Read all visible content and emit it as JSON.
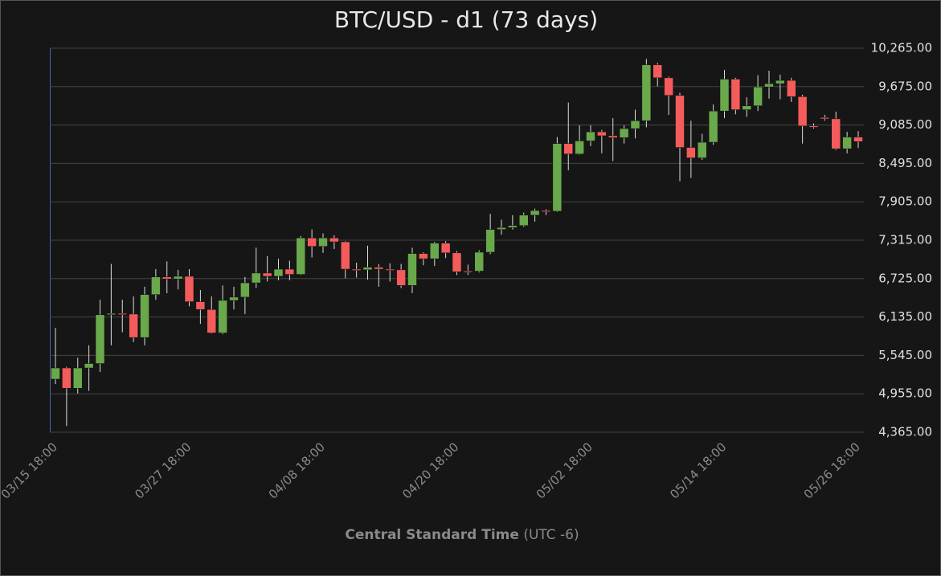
{
  "chart_data": {
    "type": "candlestick",
    "title": "BTC/USD - d1 (73 days)",
    "x_label": "Central Standard Time",
    "x_label_note": "(UTC -6)",
    "up_color": "#69a84b",
    "down_color": "#f45b5b",
    "grid": true,
    "categories": [
      "03/15 18:00",
      null,
      null,
      null,
      null,
      null,
      null,
      null,
      null,
      null,
      null,
      null,
      "03/27 18:00",
      null,
      null,
      null,
      null,
      null,
      null,
      null,
      null,
      null,
      null,
      null,
      "04/08 18:00",
      null,
      null,
      null,
      null,
      null,
      null,
      null,
      null,
      null,
      null,
      null,
      "04/20 18:00",
      null,
      null,
      null,
      null,
      null,
      null,
      null,
      null,
      null,
      null,
      null,
      "05/02 18:00",
      null,
      null,
      null,
      null,
      null,
      null,
      null,
      null,
      null,
      null,
      null,
      "05/14 18:00",
      null,
      null,
      null,
      null,
      null,
      null,
      null,
      null,
      null,
      null,
      null,
      "05/26 18:00"
    ],
    "open": [
      5180,
      5352,
      5040,
      5352,
      5420,
      6170,
      6190,
      6180,
      5820,
      6480,
      6750,
      6720,
      6760,
      6370,
      6250,
      5890,
      6390,
      6440,
      6660,
      6810,
      6760,
      6870,
      6790,
      7350,
      7220,
      7350,
      7290,
      6870,
      6860,
      6900,
      6870,
      6860,
      6620,
      7110,
      7030,
      7270,
      7120,
      6840,
      6840,
      7130,
      7480,
      7510,
      7540,
      7700,
      7770,
      7760,
      8800,
      8640,
      8840,
      8980,
      8920,
      8890,
      9030,
      9150,
      10010,
      9810,
      9540,
      8740,
      8580,
      8820,
      9300,
      9790,
      9320,
      9380,
      9670,
      9720,
      9770,
      9520,
      9070,
      9200,
      9180,
      8720,
      8900
    ],
    "high": [
      5970,
      5370,
      5510,
      5700,
      6400,
      6950,
      6400,
      6450,
      6600,
      6870,
      6990,
      6860,
      6870,
      6550,
      6450,
      6620,
      6600,
      6750,
      7200,
      7070,
      7030,
      7000,
      7380,
      7480,
      7420,
      7390,
      7300,
      6970,
      7230,
      6950,
      6960,
      6950,
      7200,
      7130,
      7290,
      7300,
      7150,
      6940,
      7160,
      7720,
      7630,
      7700,
      7740,
      7800,
      7790,
      8900,
      9430,
      9080,
      9080,
      9010,
      9190,
      9080,
      9320,
      10100,
      10040,
      9830,
      9580,
      9150,
      8950,
      9400,
      9930,
      9810,
      9510,
      9850,
      9920,
      9860,
      9810,
      9550,
      9110,
      9240,
      9290,
      8980,
      8990
    ],
    "low": [
      5105,
      4460,
      4960,
      5000,
      5290,
      5700,
      5900,
      5750,
      5700,
      6400,
      6500,
      6560,
      6300,
      6030,
      5880,
      5870,
      6250,
      6180,
      6580,
      6680,
      6700,
      6700,
      6780,
      7050,
      7120,
      7180,
      6730,
      6740,
      6710,
      6600,
      6680,
      6580,
      6500,
      6930,
      6920,
      7040,
      6780,
      6780,
      6820,
      7100,
      7400,
      7480,
      7520,
      7600,
      7700,
      7750,
      8390,
      8630,
      8760,
      8650,
      8530,
      8800,
      8880,
      9050,
      9680,
      9240,
      8220,
      8270,
      8550,
      8780,
      9190,
      9250,
      9210,
      9300,
      9490,
      9480,
      9440,
      8800,
      9030,
      9150,
      8700,
      8650,
      8730
    ],
    "close": [
      5352,
      5040,
      5352,
      5420,
      6170,
      6190,
      6180,
      5820,
      6480,
      6750,
      6720,
      6760,
      6370,
      6250,
      5890,
      6390,
      6440,
      6660,
      6810,
      6760,
      6870,
      6790,
      7350,
      7220,
      7350,
      7290,
      6870,
      6860,
      6900,
      6870,
      6860,
      6620,
      7110,
      7030,
      7270,
      7120,
      6830,
      6830,
      7130,
      7480,
      7510,
      7540,
      7700,
      7770,
      7760,
      8800,
      8640,
      8840,
      8980,
      8920,
      8890,
      9030,
      9150,
      10010,
      9810,
      9540,
      8740,
      8580,
      8820,
      9300,
      9790,
      9320,
      9380,
      9670,
      9720,
      9770,
      9520,
      9070,
      9050,
      9180,
      8720,
      8900,
      8830
    ],
    "ylim": [
      4365,
      10265
    ],
    "yticks": [
      {
        "value": 4365,
        "label": "4,365.00"
      },
      {
        "value": 4955,
        "label": "4,955.00"
      },
      {
        "value": 5545,
        "label": "5,545.00"
      },
      {
        "value": 6135,
        "label": "6,135.00"
      },
      {
        "value": 6725,
        "label": "6,725.00"
      },
      {
        "value": 7315,
        "label": "7,315.00"
      },
      {
        "value": 7905,
        "label": "7,905.00"
      },
      {
        "value": 8495,
        "label": "8,495.00"
      },
      {
        "value": 9085,
        "label": "9,085.00"
      },
      {
        "value": 9675,
        "label": "9,675.00"
      },
      {
        "value": 10265,
        "label": "10,265.00"
      }
    ]
  }
}
